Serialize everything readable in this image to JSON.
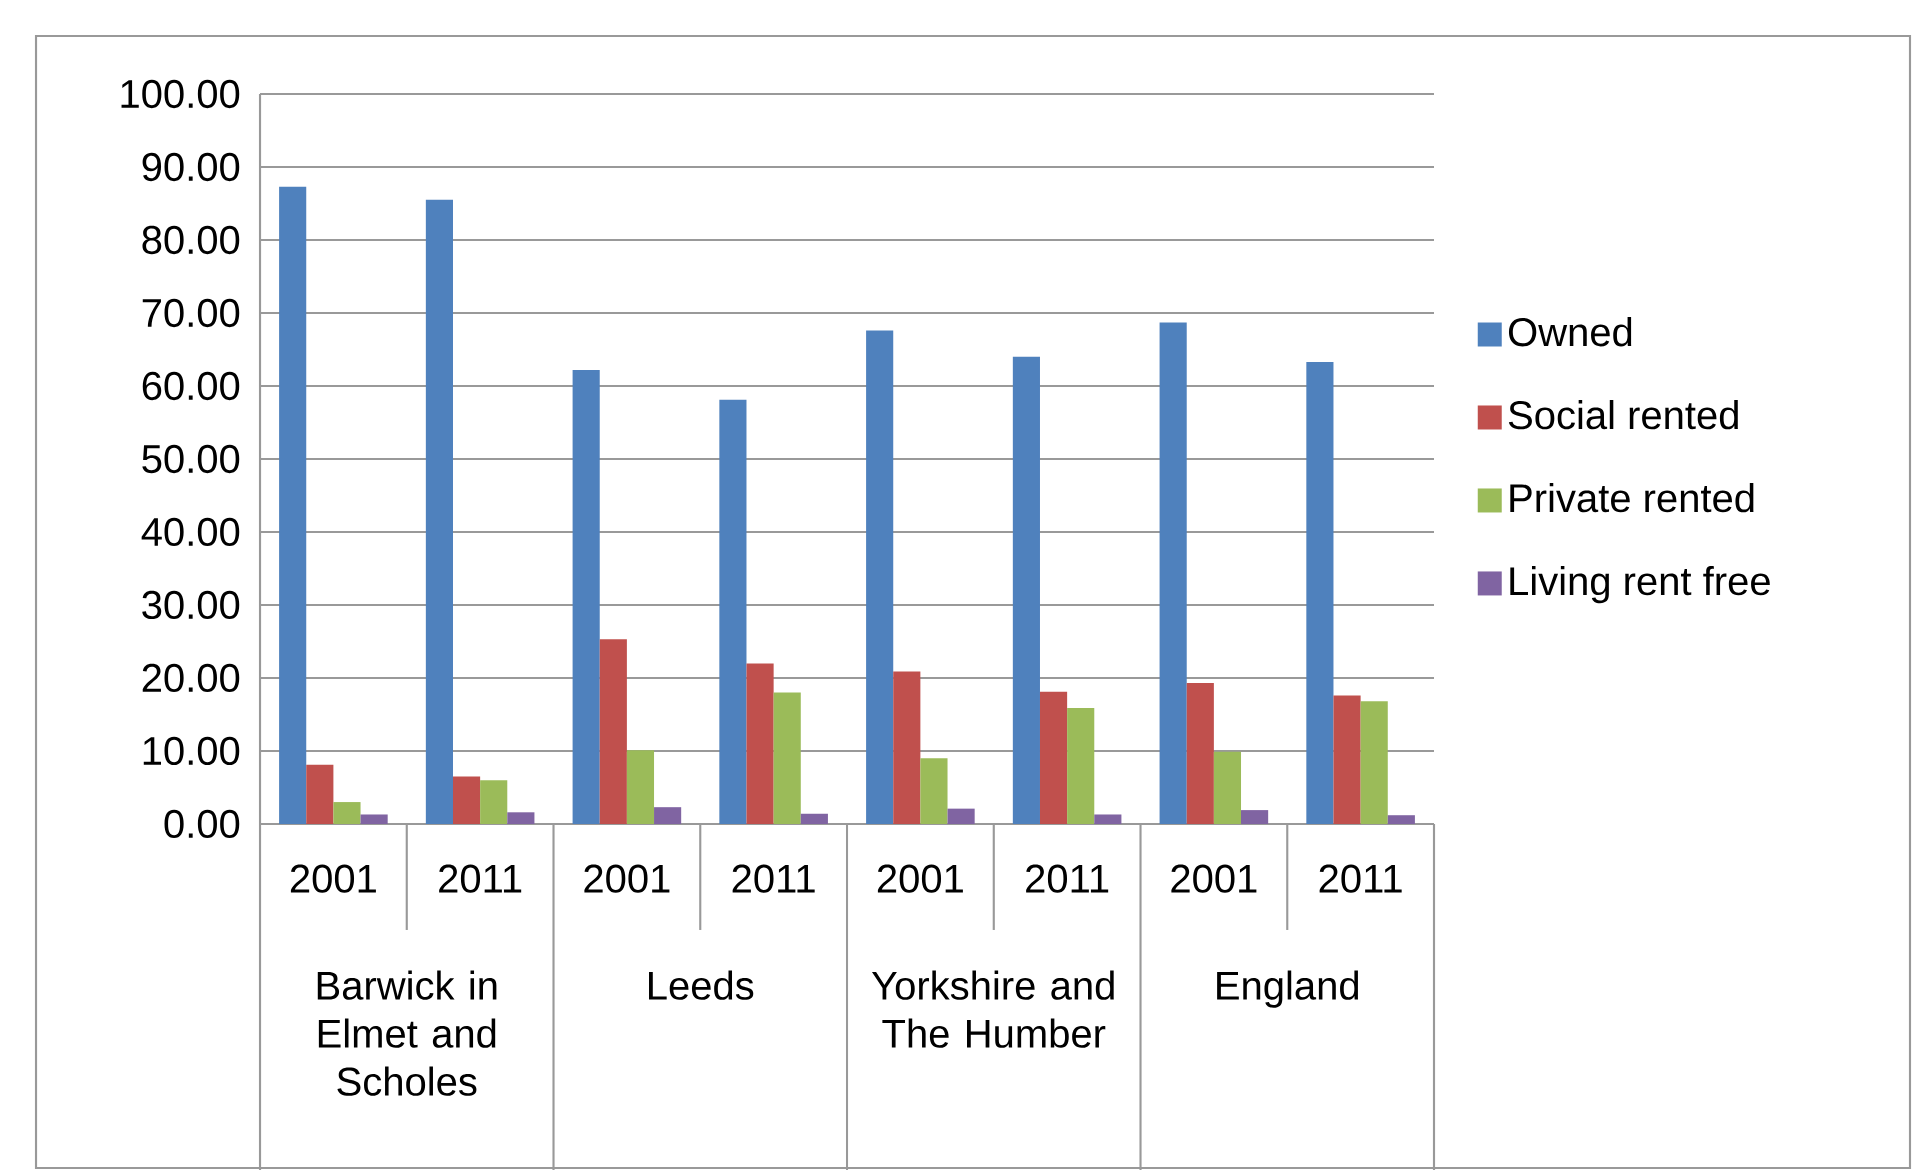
{
  "chart_data": {
    "type": "bar",
    "categories": [
      "2001",
      "2011",
      "2001",
      "2011",
      "2001",
      "2011",
      "2001",
      "2011"
    ],
    "annotations": [
      "Barwick in Elmet and Scholes",
      "Leeds",
      "Yorkshire and The Humber",
      "England"
    ],
    "series": [
      {
        "name": "Owned",
        "color": "#4f81bd",
        "values": [
          87.3,
          85.5,
          62.2,
          58.1,
          67.6,
          64.0,
          68.7,
          63.3
        ]
      },
      {
        "name": "Social rented",
        "color": "#c0504d",
        "values": [
          8.1,
          6.5,
          25.3,
          22.0,
          20.9,
          18.1,
          19.3,
          17.6
        ]
      },
      {
        "name": "Private rented",
        "color": "#9bbb59",
        "values": [
          3.0,
          6.0,
          10.1,
          18.0,
          9.0,
          15.9,
          9.9,
          16.8
        ]
      },
      {
        "name": "Living rent free",
        "color": "#8064a2",
        "values": [
          1.3,
          1.6,
          2.3,
          1.4,
          2.1,
          1.3,
          1.9,
          1.2
        ]
      }
    ],
    "ylim": [
      0,
      100
    ],
    "yticks": [
      {
        "value": 0,
        "label": "0.00"
      },
      {
        "value": 10,
        "label": "10.00"
      },
      {
        "value": 20,
        "label": "20.00"
      },
      {
        "value": 30,
        "label": "30.00"
      },
      {
        "value": 40,
        "label": "40.00"
      },
      {
        "value": 50,
        "label": "50.00"
      },
      {
        "value": 60,
        "label": "60.00"
      },
      {
        "value": 70,
        "label": "70.00"
      },
      {
        "value": 80,
        "label": "80.00"
      },
      {
        "value": 90,
        "label": "90.00"
      },
      {
        "value": 100,
        "label": "100.00"
      }
    ],
    "grid": "y",
    "legend": "right"
  }
}
